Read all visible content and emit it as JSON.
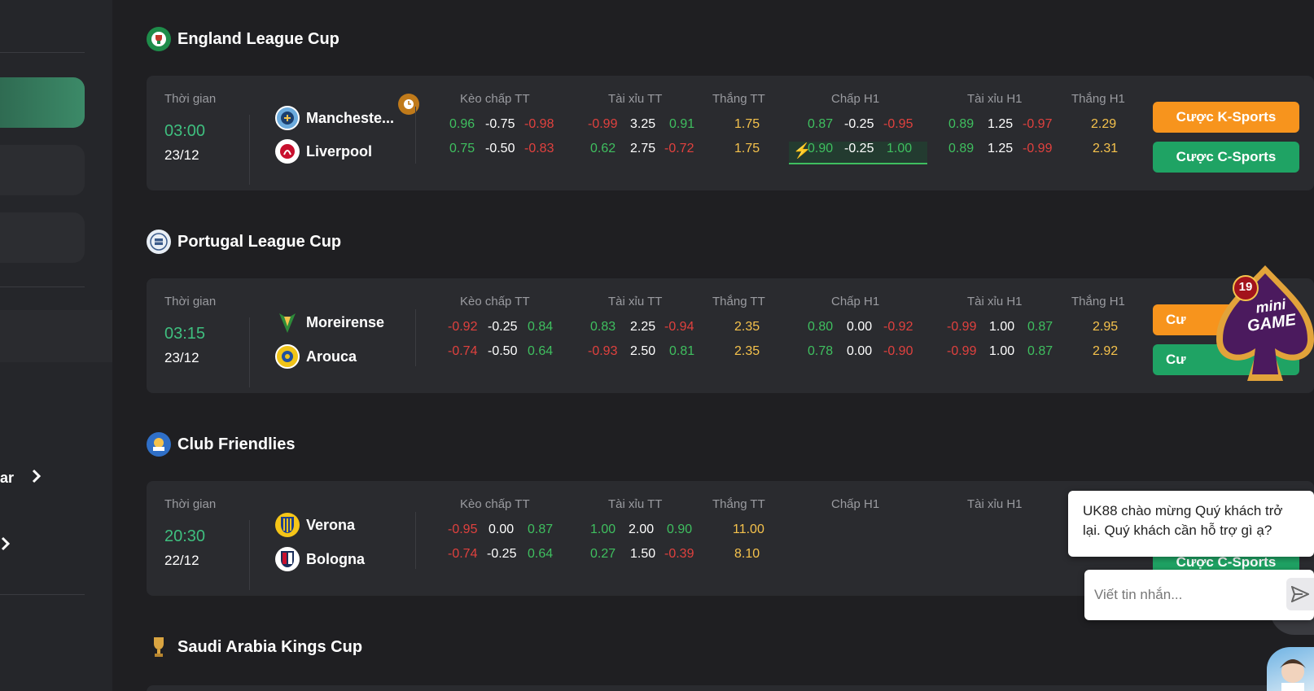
{
  "sidebar": {
    "partial_item_label": "ar"
  },
  "leagues": [
    {
      "name": "England League Cup",
      "icon": "england-league-cup-logo",
      "match": {
        "time_label": "Thời gian",
        "time": "03:00",
        "date": "23/12",
        "home": "Mancheste...",
        "away": "Liverpool",
        "columns": [
          "Kèo chấp TT",
          "Tài xỉu TT",
          "Thắng TT",
          "Chấp H1",
          "Tài xỉu H1",
          "Thắng H1"
        ],
        "rows": [
          [
            "0.96",
            "-0.75",
            "-0.98",
            "-0.99",
            "3.25",
            "0.91",
            "1.75",
            "0.87",
            "-0.25",
            "-0.95",
            "0.89",
            "1.25",
            "-0.97",
            "2.29"
          ],
          [
            "0.75",
            "-0.50",
            "-0.83",
            "0.62",
            "2.75",
            "-0.72",
            "1.75",
            "0.90",
            "-0.25",
            "1.00",
            "0.89",
            "1.25",
            "-0.99",
            "2.31"
          ]
        ],
        "btn_k": "Cược K-Sports",
        "btn_c": "Cược C-Sports"
      }
    },
    {
      "name": "Portugal League Cup",
      "icon": "portugal-league-cup-logo",
      "match": {
        "time_label": "Thời gian",
        "time": "03:15",
        "date": "23/12",
        "home": "Moreirense",
        "away": "Arouca",
        "columns": [
          "Kèo chấp TT",
          "Tài xỉu TT",
          "Thắng TT",
          "Chấp H1",
          "Tài xỉu H1",
          "Thắng H1"
        ],
        "rows": [
          [
            "-0.92",
            "-0.25",
            "0.84",
            "0.83",
            "2.25",
            "-0.94",
            "2.35",
            "0.80",
            "0.00",
            "-0.92",
            "-0.99",
            "1.00",
            "0.87",
            "2.95"
          ],
          [
            "-0.74",
            "-0.50",
            "0.64",
            "-0.93",
            "2.50",
            "0.81",
            "2.35",
            "0.78",
            "0.00",
            "-0.90",
            "-0.99",
            "1.00",
            "0.87",
            "2.92"
          ]
        ],
        "btn_k": "Cư",
        "btn_c": "Cư"
      }
    },
    {
      "name": "Club Friendlies",
      "icon": "fifa-logo",
      "match": {
        "time_label": "Thời gian",
        "time": "20:30",
        "date": "22/12",
        "home": "Verona",
        "away": "Bologna",
        "columns": [
          "Kèo chấp TT",
          "Tài xỉu TT",
          "Thắng TT",
          "Chấp H1",
          "Tài xỉu H1"
        ],
        "rows": [
          [
            "-0.95",
            "0.00",
            "0.87",
            "1.00",
            "2.00",
            "0.90",
            "11.00"
          ],
          [
            "-0.74",
            "-0.25",
            "0.64",
            "0.27",
            "1.50",
            "-0.39",
            "8.10"
          ]
        ],
        "btn_c": "Cược C-Sports"
      }
    },
    {
      "name": "Saudi Arabia Kings Cup",
      "icon": "saudi-kings-cup-logo"
    }
  ],
  "mini_game": {
    "age": "19",
    "line1": "mini",
    "line2": "GAME"
  },
  "chat": {
    "greeting": "UK88 chào mừng Quý khách trở lại. Quý khách cần hỗ trợ gì ạ?",
    "placeholder": "Viết tin nhắn..."
  },
  "colors": {
    "accent_green": "#3fbf7f",
    "odd_red": "#e0413e",
    "odd_green": "#3fbf5f",
    "odd_yellow": "#f5c24c",
    "btn_orange": "#f7941d",
    "btn_green": "#1fa364"
  }
}
